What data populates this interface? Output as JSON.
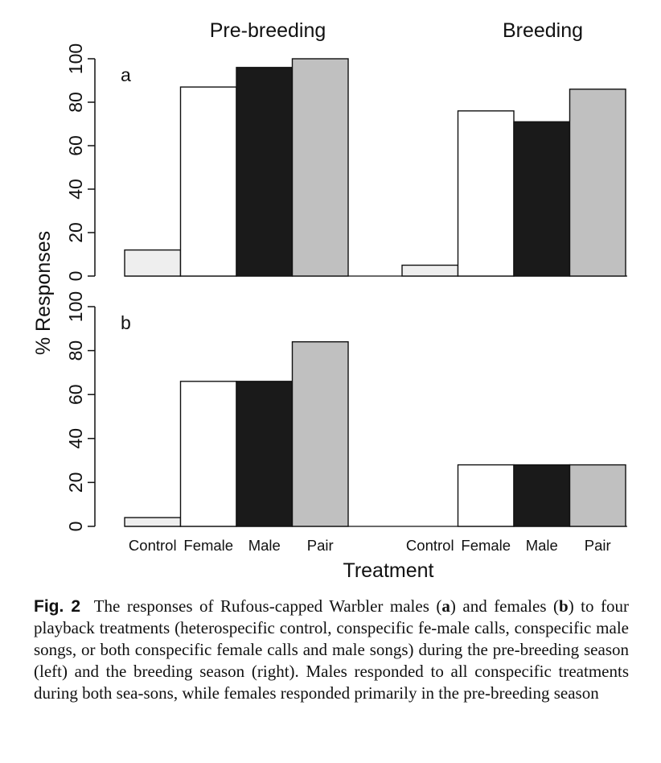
{
  "chart_data": {
    "type": "bar",
    "season_titles": [
      "Pre-breeding",
      "Breeding"
    ],
    "categories": [
      "Control",
      "Female",
      "Male",
      "Pair"
    ],
    "ylabel": "% Responses",
    "xlabel": "Treatment",
    "ylim": [
      0,
      100
    ],
    "yticks": [
      0,
      20,
      40,
      60,
      80,
      100
    ],
    "colors": {
      "Control": "#eeeeee",
      "Female": "#ffffff",
      "Male": "#1a1a1a",
      "Pair": "#c0c0c0"
    },
    "panels": [
      {
        "label": "a",
        "subject": "males",
        "pre_breeding": [
          12,
          87,
          96,
          100
        ],
        "breeding": [
          5,
          76,
          71,
          86
        ]
      },
      {
        "label": "b",
        "subject": "females",
        "pre_breeding": [
          4,
          66,
          66,
          84
        ],
        "breeding": [
          0,
          28,
          28,
          28
        ]
      }
    ]
  },
  "caption": {
    "fig_label": "Fig. 2",
    "parts": [
      "The responses of Rufous-capped Warbler males (",
      "a",
      ") and females (",
      "b",
      ") to four playback treatments (heterospecific control, conspecific fe-male calls, conspecific male songs, or both conspecific female calls and male songs) during the pre-breeding season (left) and the breeding season (right). Males responded to all conspecific treatments during both sea-sons, while females responded primarily in the pre-breeding season"
    ]
  }
}
